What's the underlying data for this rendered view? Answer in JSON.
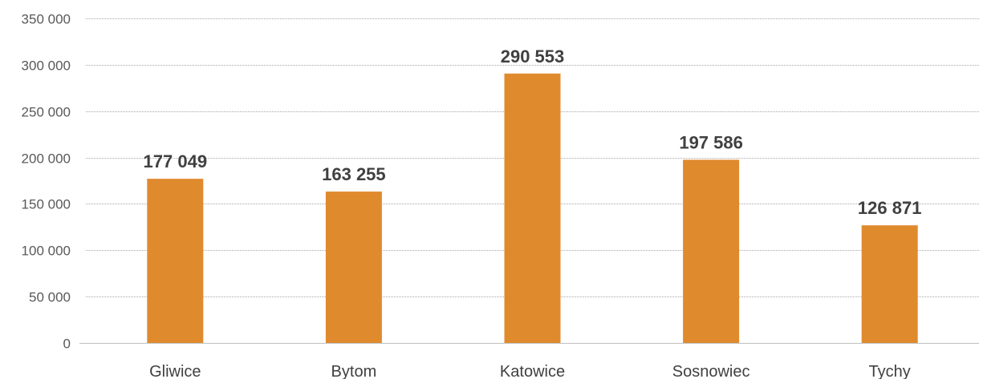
{
  "chart_data": {
    "type": "bar",
    "categories": [
      "Gliwice",
      "Bytom",
      "Katowice",
      "Sosnowiec",
      "Tychy"
    ],
    "series": [
      {
        "values": [
          177049,
          163255,
          290553,
          197586,
          126871
        ],
        "data_labels": [
          "177 049",
          "163 255",
          "290 553",
          "197 586",
          "126 871"
        ]
      }
    ],
    "y_ticks": [
      {
        "value": 0,
        "label": "0"
      },
      {
        "value": 50000,
        "label": "50 000"
      },
      {
        "value": 100000,
        "label": "100 000"
      },
      {
        "value": 150000,
        "label": "150 000"
      },
      {
        "value": 200000,
        "label": "200 000"
      },
      {
        "value": 250000,
        "label": "250 000"
      },
      {
        "value": 300000,
        "label": "300 000"
      },
      {
        "value": 350000,
        "label": "350 000"
      }
    ],
    "ylim": [
      0,
      350000
    ],
    "grid": true,
    "legend": "none",
    "colors": {
      "bar": "#E08A2E",
      "grid": "#A6A6A6",
      "axis": "#BFBFBF",
      "tick_text": "#595959",
      "data_label": "#404040",
      "category_text": "#404040"
    }
  }
}
